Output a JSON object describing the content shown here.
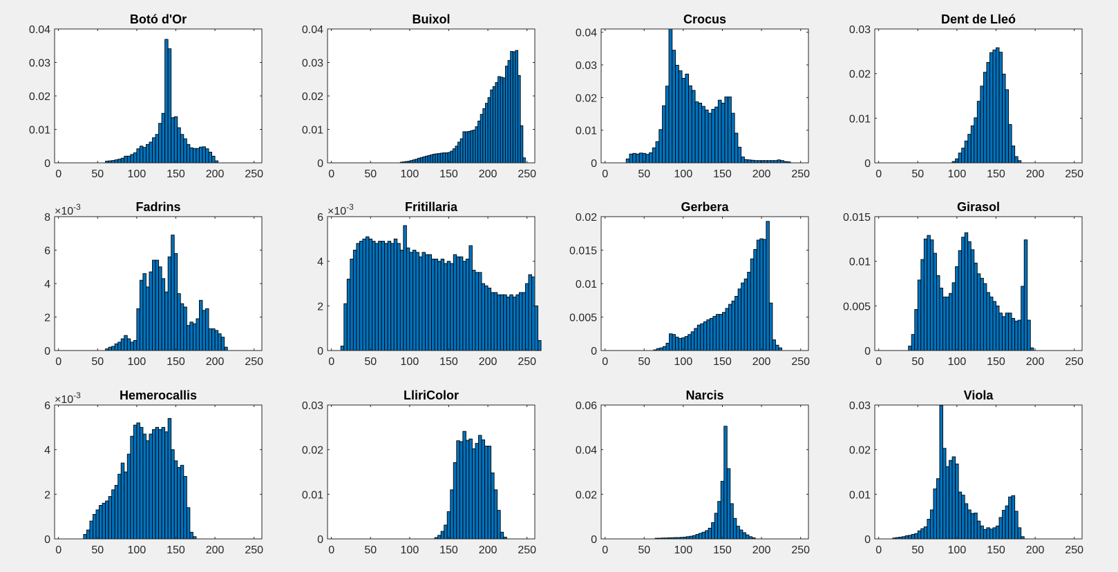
{
  "figure": {
    "background": "#f0f0f0",
    "bar_color": "#0072bd",
    "bar_edge": "#000000"
  },
  "chart_data": [
    {
      "type": "bar",
      "title": "Botó d'Or",
      "xlabel": "",
      "ylabel": "",
      "xlim": [
        -5,
        260
      ],
      "ylim": [
        0,
        0.04
      ],
      "bin_width": 4,
      "x_start": 60,
      "xticks": [
        "0",
        "50",
        "100",
        "150",
        "200",
        "250"
      ],
      "yticks": [
        "0",
        "0.01",
        "0.02",
        "0.03",
        "0.04"
      ],
      "exponent": "",
      "values": [
        0.0005,
        0.0006,
        0.0007,
        0.0009,
        0.0011,
        0.0014,
        0.002,
        0.002,
        0.0025,
        0.003,
        0.0042,
        0.005,
        0.0046,
        0.0055,
        0.0062,
        0.0075,
        0.0085,
        0.0118,
        0.0148,
        0.0369,
        0.0341,
        0.0135,
        0.0138,
        0.0105,
        0.0085,
        0.0072,
        0.0055,
        0.0045,
        0.0043,
        0.0043,
        0.0047,
        0.0048,
        0.0042,
        0.0032,
        0.002,
        0.0006
      ]
    },
    {
      "type": "bar",
      "title": "Buixol",
      "xlabel": "",
      "ylabel": "",
      "xlim": [
        -5,
        260
      ],
      "ylim": [
        0,
        0.04
      ],
      "bin_width": 3.2,
      "x_start": 88,
      "xticks": [
        "0",
        "50",
        "100",
        "150",
        "200",
        "250"
      ],
      "yticks": [
        "0",
        "0.01",
        "0.02",
        "0.03",
        "0.04"
      ],
      "exponent": "",
      "values": [
        0.0002,
        0.0003,
        0.0004,
        0.0005,
        0.0007,
        0.0009,
        0.0011,
        0.0014,
        0.0016,
        0.0018,
        0.002,
        0.0022,
        0.0024,
        0.0026,
        0.0027,
        0.0028,
        0.0029,
        0.003,
        0.003,
        0.0031,
        0.0035,
        0.0042,
        0.005,
        0.0062,
        0.0072,
        0.0093,
        0.0093,
        0.0094,
        0.0096,
        0.0098,
        0.0108,
        0.0125,
        0.0145,
        0.0162,
        0.0178,
        0.0195,
        0.0218,
        0.0228,
        0.024,
        0.0258,
        0.0256,
        0.0254,
        0.0289,
        0.0306,
        0.0333,
        0.0332,
        0.0336,
        0.0261,
        0.0111,
        0.0015
      ]
    },
    {
      "type": "bar",
      "title": "Crocus",
      "xlabel": "",
      "ylabel": "",
      "xlim": [
        -5,
        260
      ],
      "ylim": [
        0,
        0.041
      ],
      "bin_width": 4.2,
      "x_start": 27,
      "xticks": [
        "0",
        "50",
        "100",
        "150",
        "200",
        "250"
      ],
      "yticks": [
        "0",
        "0.01",
        "0.02",
        "0.03",
        "0.04"
      ],
      "exponent": "",
      "values": [
        0.0012,
        0.0027,
        0.0029,
        0.0027,
        0.003,
        0.0029,
        0.0026,
        0.0031,
        0.0046,
        0.0065,
        0.0102,
        0.0175,
        0.0235,
        0.0412,
        0.0345,
        0.0299,
        0.0282,
        0.0259,
        0.0272,
        0.0236,
        0.0222,
        0.0187,
        0.0183,
        0.0173,
        0.0162,
        0.0152,
        0.0164,
        0.0171,
        0.0192,
        0.0183,
        0.0202,
        0.0202,
        0.0152,
        0.0091,
        0.0048,
        0.0018,
        0.001,
        0.0009,
        0.0008,
        0.0007,
        0.0007,
        0.0007,
        0.0007,
        0.0007,
        0.0007,
        0.0007,
        0.0009,
        0.0007,
        0.0004,
        0.0003
      ]
    },
    {
      "type": "bar",
      "title": "Dent de Lleó",
      "xlabel": "",
      "ylabel": "",
      "xlim": [
        -5,
        260
      ],
      "ylim": [
        0,
        0.03
      ],
      "bin_width": 4,
      "x_start": 94,
      "xticks": [
        "0",
        "50",
        "100",
        "150",
        "200",
        "250"
      ],
      "yticks": [
        "0",
        "0.01",
        "0.02",
        "0.03"
      ],
      "exponent": "",
      "values": [
        0.0003,
        0.0009,
        0.0022,
        0.0033,
        0.0049,
        0.0064,
        0.0083,
        0.0101,
        0.0138,
        0.0172,
        0.0203,
        0.0225,
        0.0247,
        0.0253,
        0.0258,
        0.0248,
        0.0199,
        0.0164,
        0.0086,
        0.0038,
        0.0014,
        0.0005
      ]
    },
    {
      "type": "bar",
      "title": "Fadrins",
      "xlabel": "",
      "ylabel": "",
      "xlim": [
        -5,
        260
      ],
      "ylim": [
        0,
        8
      ],
      "bin_width": 4,
      "x_start": 60,
      "xticks": [
        "0",
        "50",
        "100",
        "150",
        "200",
        "250"
      ],
      "yticks": [
        "0",
        "2",
        "4",
        "6",
        "8"
      ],
      "exponent": "-3",
      "values": [
        0.1,
        0.2,
        0.25,
        0.4,
        0.5,
        0.7,
        0.9,
        0.7,
        0.5,
        0.6,
        2.5,
        4.2,
        4.6,
        3.8,
        4.7,
        5.4,
        5.4,
        5.0,
        4.3,
        3.5,
        5.6,
        6.9,
        5.8,
        3.4,
        2.8,
        2.6,
        1.5,
        1.7,
        1.6,
        1.9,
        3.0,
        2.4,
        2.5,
        1.3,
        1.3,
        1.2,
        1.0,
        0.8,
        0.2
      ]
    },
    {
      "type": "bar",
      "title": "Fritillaria",
      "xlabel": "",
      "ylabel": "",
      "xlim": [
        -5,
        260
      ],
      "ylim": [
        0,
        6
      ],
      "bin_width": 4,
      "x_start": 12,
      "xticks": [
        "0",
        "50",
        "100",
        "150",
        "200",
        "250"
      ],
      "yticks": [
        "0",
        "2",
        "4",
        "6"
      ],
      "exponent": "-3",
      "values": [
        0.2,
        2.1,
        3.2,
        4.1,
        4.5,
        4.8,
        4.9,
        5.0,
        5.1,
        5.0,
        4.9,
        4.8,
        4.9,
        4.9,
        4.8,
        4.9,
        4.8,
        5.0,
        4.8,
        4.5,
        5.6,
        4.6,
        4.4,
        4.5,
        4.4,
        4.2,
        4.4,
        4.3,
        4.3,
        4.1,
        4.1,
        4.0,
        4.1,
        3.9,
        4.0,
        3.9,
        4.3,
        4.2,
        4.2,
        4.0,
        4.1,
        4.7,
        3.6,
        3.5,
        3.5,
        3.0,
        2.9,
        2.8,
        2.6,
        2.6,
        2.5,
        2.5,
        2.5,
        2.4,
        2.5,
        2.4,
        2.5,
        2.6,
        2.6,
        3.0,
        3.4,
        3.3,
        2.0,
        0.45
      ]
    },
    {
      "type": "bar",
      "title": "Gerbera",
      "xlabel": "",
      "ylabel": "",
      "xlim": [
        -5,
        260
      ],
      "ylim": [
        0,
        0.02
      ],
      "bin_width": 4,
      "x_start": 62,
      "xticks": [
        "0",
        "50",
        "100",
        "150",
        "200",
        "250"
      ],
      "yticks": [
        "0",
        "0.005",
        "0.01",
        "0.015",
        "0.02"
      ],
      "exponent": "",
      "values": [
        0.0001,
        0.0003,
        0.0004,
        0.0006,
        0.0011,
        0.0025,
        0.0024,
        0.002,
        0.0018,
        0.0019,
        0.0021,
        0.0024,
        0.0028,
        0.0033,
        0.0038,
        0.004,
        0.0043,
        0.0046,
        0.0048,
        0.0051,
        0.0054,
        0.0054,
        0.0057,
        0.0063,
        0.0069,
        0.0074,
        0.0081,
        0.0092,
        0.0101,
        0.0107,
        0.0117,
        0.0137,
        0.0151,
        0.0165,
        0.0167,
        0.0166,
        0.0193,
        0.0071,
        0.0016,
        0.0008,
        0.0004
      ]
    },
    {
      "type": "bar",
      "title": "Girasol",
      "xlabel": "",
      "ylabel": "",
      "xlim": [
        -5,
        260
      ],
      "ylim": [
        0,
        0.015
      ],
      "bin_width": 4,
      "x_start": 38,
      "xticks": [
        "0",
        "50",
        "100",
        "150",
        "200",
        "250"
      ],
      "yticks": [
        "0",
        "0.005",
        "0.01",
        "0.015"
      ],
      "exponent": "",
      "values": [
        0.0005,
        0.0018,
        0.0046,
        0.0079,
        0.0102,
        0.0125,
        0.0129,
        0.0124,
        0.0109,
        0.0084,
        0.007,
        0.006,
        0.006,
        0.0064,
        0.0076,
        0.0094,
        0.0112,
        0.0127,
        0.0132,
        0.0122,
        0.0113,
        0.0098,
        0.0086,
        0.0081,
        0.0075,
        0.0065,
        0.006,
        0.0055,
        0.005,
        0.0042,
        0.0038,
        0.0042,
        0.0042,
        0.0036,
        0.0033,
        0.0034,
        0.0072,
        0.0124,
        0.0034,
        0.0003
      ]
    },
    {
      "type": "bar",
      "title": "Hemerocallis",
      "xlabel": "",
      "ylabel": "",
      "xlim": [
        -5,
        260
      ],
      "ylim": [
        0,
        6
      ],
      "bin_width": 4,
      "x_start": 32,
      "xticks": [
        "0",
        "50",
        "100",
        "150",
        "200",
        "250"
      ],
      "yticks": [
        "0",
        "2",
        "4",
        "6"
      ],
      "exponent": "-3",
      "values": [
        0.2,
        0.4,
        0.8,
        1.1,
        1.3,
        1.5,
        1.6,
        1.7,
        1.9,
        2.2,
        2.4,
        2.9,
        3.4,
        3.0,
        3.8,
        4.6,
        5.1,
        5.2,
        5.0,
        4.7,
        4.4,
        4.7,
        4.9,
        5.0,
        4.9,
        5.0,
        4.8,
        5.4,
        4.0,
        3.5,
        3.2,
        3.3,
        2.8,
        1.4,
        0.3,
        0.1
      ]
    },
    {
      "type": "bar",
      "title": "LliriColor",
      "xlabel": "",
      "ylabel": "",
      "xlim": [
        -5,
        260
      ],
      "ylim": [
        0,
        0.03
      ],
      "bin_width": 4,
      "x_start": 132,
      "xticks": [
        "0",
        "50",
        "100",
        "150",
        "200",
        "250"
      ],
      "yticks": [
        "0",
        "0.01",
        "0.02",
        "0.03"
      ],
      "exponent": "",
      "values": [
        0.0003,
        0.0008,
        0.0017,
        0.0031,
        0.0061,
        0.011,
        0.0171,
        0.022,
        0.0218,
        0.0241,
        0.0221,
        0.0224,
        0.0202,
        0.0214,
        0.0232,
        0.0222,
        0.0208,
        0.0208,
        0.0148,
        0.011,
        0.0064,
        0.0015,
        0.0004
      ]
    },
    {
      "type": "bar",
      "title": "Narcis",
      "xlabel": "",
      "ylabel": "",
      "xlim": [
        -5,
        260
      ],
      "ylim": [
        0,
        0.06
      ],
      "bin_width": 4,
      "x_start": 64,
      "xticks": [
        "0",
        "50",
        "100",
        "150",
        "200",
        "250"
      ],
      "yticks": [
        "0",
        "0.02",
        "0.04",
        "0.06"
      ],
      "exponent": "",
      "values": [
        0.0003,
        0.0003,
        0.0004,
        0.0004,
        0.0005,
        0.0005,
        0.0006,
        0.0006,
        0.0007,
        0.0008,
        0.001,
        0.0012,
        0.0015,
        0.002,
        0.0025,
        0.003,
        0.0037,
        0.0048,
        0.0073,
        0.0115,
        0.0168,
        0.0258,
        0.0505,
        0.0315,
        0.0158,
        0.0092,
        0.0057,
        0.004,
        0.0028,
        0.0018,
        0.001,
        0.0005
      ]
    },
    {
      "type": "bar",
      "title": "Viola",
      "xlabel": "",
      "ylabel": "",
      "xlim": [
        -5,
        260
      ],
      "ylim": [
        0,
        0.03
      ],
      "bin_width": 4,
      "x_start": 18,
      "xticks": [
        "0",
        "50",
        "100",
        "150",
        "200",
        "250"
      ],
      "yticks": [
        "0",
        "0.01",
        "0.02",
        "0.03"
      ],
      "exponent": "",
      "values": [
        0.0002,
        0.0003,
        0.0004,
        0.0005,
        0.0007,
        0.0008,
        0.001,
        0.0012,
        0.0018,
        0.0023,
        0.0027,
        0.0044,
        0.0065,
        0.0112,
        0.0135,
        0.0299,
        0.0203,
        0.0162,
        0.0176,
        0.0184,
        0.0168,
        0.0105,
        0.0098,
        0.0079,
        0.0065,
        0.0057,
        0.0058,
        0.004,
        0.0029,
        0.0021,
        0.0025,
        0.0022,
        0.0025,
        0.0029,
        0.0048,
        0.0064,
        0.0074,
        0.0094,
        0.0097,
        0.0062,
        0.0025,
        0.0005
      ]
    }
  ]
}
